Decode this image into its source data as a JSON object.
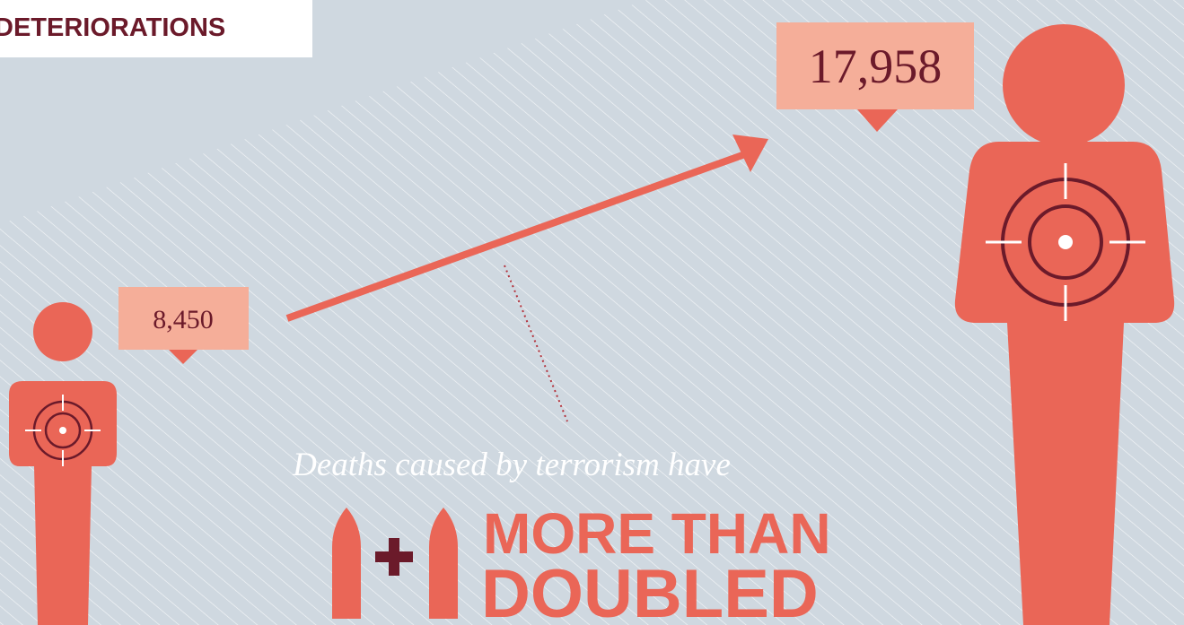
{
  "header": {
    "title": "DETERIORATIONS"
  },
  "before": {
    "label": "8,450"
  },
  "after": {
    "label": "17,958"
  },
  "caption": {
    "intro": "Deaths caused by terrorism have",
    "headline": [
      "MORE THAN",
      "DOUBLED"
    ]
  }
}
